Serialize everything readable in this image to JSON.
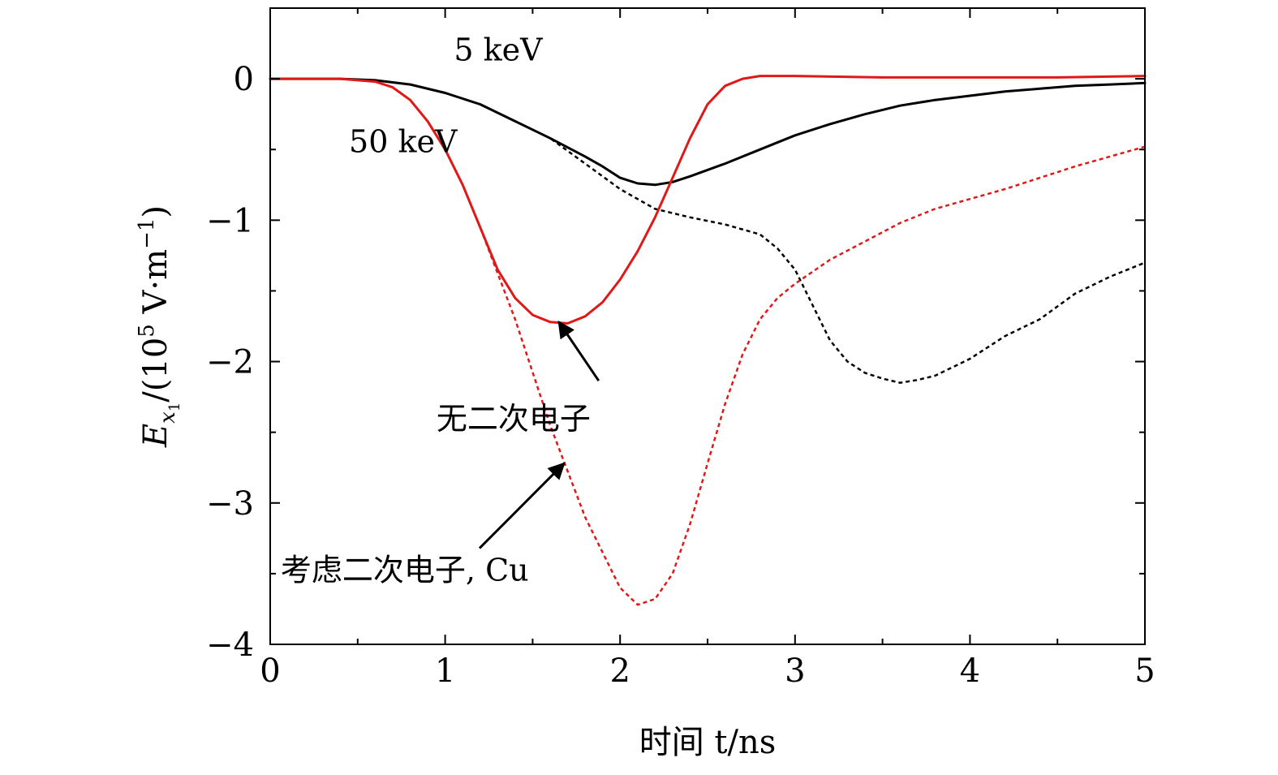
{
  "chart_data": {
    "type": "line",
    "title": "",
    "xlabel": "时间 t/ns",
    "ylabel": "E_x1/(10^5 V·m^-1)",
    "ylabel_parts": {
      "E": "E",
      "x": "x",
      "one": "1",
      "rest": "/(10",
      "exp": "5",
      "unit": " V·m",
      "neg_exp": "−1",
      "close": ")"
    },
    "xlim": [
      0,
      5
    ],
    "ylim": [
      -4,
      0.5
    ],
    "x_ticks": [
      0,
      1,
      2,
      3,
      4,
      5
    ],
    "x_tick_labels": [
      "0",
      "1",
      "2",
      "3",
      "4",
      "5"
    ],
    "y_ticks": [
      0,
      -1,
      -2,
      -3,
      -4
    ],
    "y_tick_labels": [
      "0",
      "−1",
      "−2",
      "−3",
      "−4"
    ],
    "grid": false,
    "colors": {
      "black": "#000000",
      "red": "#e01818"
    },
    "series": [
      {
        "name": "5 keV, 无二次电子",
        "color": "#000000",
        "style": "solid",
        "x": [
          0,
          0.4,
          0.6,
          0.8,
          1.0,
          1.2,
          1.4,
          1.6,
          1.8,
          1.9,
          2.0,
          2.1,
          2.2,
          2.3,
          2.4,
          2.6,
          2.8,
          3.0,
          3.2,
          3.4,
          3.6,
          3.8,
          4.0,
          4.2,
          4.4,
          4.6,
          4.8,
          5.0
        ],
        "y": [
          0,
          0,
          -0.01,
          -0.04,
          -0.1,
          -0.18,
          -0.3,
          -0.42,
          -0.55,
          -0.62,
          -0.7,
          -0.74,
          -0.75,
          -0.73,
          -0.69,
          -0.6,
          -0.5,
          -0.4,
          -0.32,
          -0.25,
          -0.19,
          -0.15,
          -0.12,
          -0.09,
          -0.07,
          -0.05,
          -0.04,
          -0.03
        ]
      },
      {
        "name": "5 keV, 考虑二次电子, Cu",
        "color": "#000000",
        "style": "dashed",
        "x": [
          0,
          0.4,
          0.6,
          0.8,
          1.0,
          1.2,
          1.4,
          1.6,
          1.8,
          2.0,
          2.2,
          2.4,
          2.6,
          2.8,
          2.9,
          3.0,
          3.1,
          3.2,
          3.3,
          3.4,
          3.5,
          3.6,
          3.7,
          3.8,
          4.0,
          4.2,
          4.4,
          4.6,
          4.8,
          5.0
        ],
        "y": [
          0,
          0,
          -0.01,
          -0.04,
          -0.1,
          -0.18,
          -0.3,
          -0.42,
          -0.6,
          -0.78,
          -0.92,
          -0.98,
          -1.03,
          -1.1,
          -1.2,
          -1.35,
          -1.6,
          -1.85,
          -2.0,
          -2.08,
          -2.12,
          -2.15,
          -2.13,
          -2.1,
          -1.98,
          -1.82,
          -1.7,
          -1.52,
          -1.4,
          -1.3
        ]
      },
      {
        "name": "50 keV, 无二次电子",
        "color": "#e01818",
        "style": "solid",
        "x": [
          0,
          0.4,
          0.6,
          0.7,
          0.8,
          0.9,
          1.0,
          1.1,
          1.2,
          1.3,
          1.4,
          1.5,
          1.6,
          1.7,
          1.8,
          1.9,
          2.0,
          2.1,
          2.2,
          2.3,
          2.4,
          2.5,
          2.6,
          2.7,
          2.8,
          3.0,
          3.5,
          4.0,
          4.5,
          5.0
        ],
        "y": [
          0,
          0,
          -0.02,
          -0.06,
          -0.15,
          -0.3,
          -0.5,
          -0.75,
          -1.05,
          -1.35,
          -1.55,
          -1.67,
          -1.72,
          -1.73,
          -1.68,
          -1.58,
          -1.42,
          -1.22,
          -0.98,
          -0.7,
          -0.42,
          -0.18,
          -0.05,
          0.0,
          0.02,
          0.02,
          0.01,
          0.01,
          0.01,
          0.02
        ]
      },
      {
        "name": "50 keV, 考虑二次电子, Cu",
        "color": "#e01818",
        "style": "dashed",
        "x": [
          0,
          0.4,
          0.6,
          0.7,
          0.8,
          0.9,
          1.0,
          1.1,
          1.2,
          1.4,
          1.6,
          1.8,
          2.0,
          2.1,
          2.2,
          2.3,
          2.4,
          2.5,
          2.6,
          2.7,
          2.8,
          2.9,
          3.0,
          3.2,
          3.4,
          3.6,
          3.8,
          4.0,
          4.2,
          4.4,
          4.6,
          4.8,
          5.0
        ],
        "y": [
          0,
          0,
          -0.02,
          -0.06,
          -0.15,
          -0.3,
          -0.5,
          -0.75,
          -1.05,
          -1.7,
          -2.45,
          -3.1,
          -3.6,
          -3.72,
          -3.68,
          -3.5,
          -3.15,
          -2.72,
          -2.3,
          -1.95,
          -1.7,
          -1.55,
          -1.45,
          -1.28,
          -1.15,
          -1.02,
          -0.92,
          -0.85,
          -0.78,
          -0.7,
          -0.62,
          -0.55,
          -0.48
        ]
      }
    ],
    "annotations": [
      {
        "text": "5 keV",
        "x": 1.05,
        "y": 0.13
      },
      {
        "text": "50 keV",
        "x": 0.45,
        "y": -0.52
      },
      {
        "text": "无二次电子",
        "x": 0.95,
        "y": -2.48,
        "arrow_to": [
          1.65,
          -1.72
        ]
      },
      {
        "text": "考虑二次电子, Cu",
        "x": 0.06,
        "y": -3.55,
        "arrow_to": [
          1.68,
          -2.72
        ]
      }
    ]
  }
}
